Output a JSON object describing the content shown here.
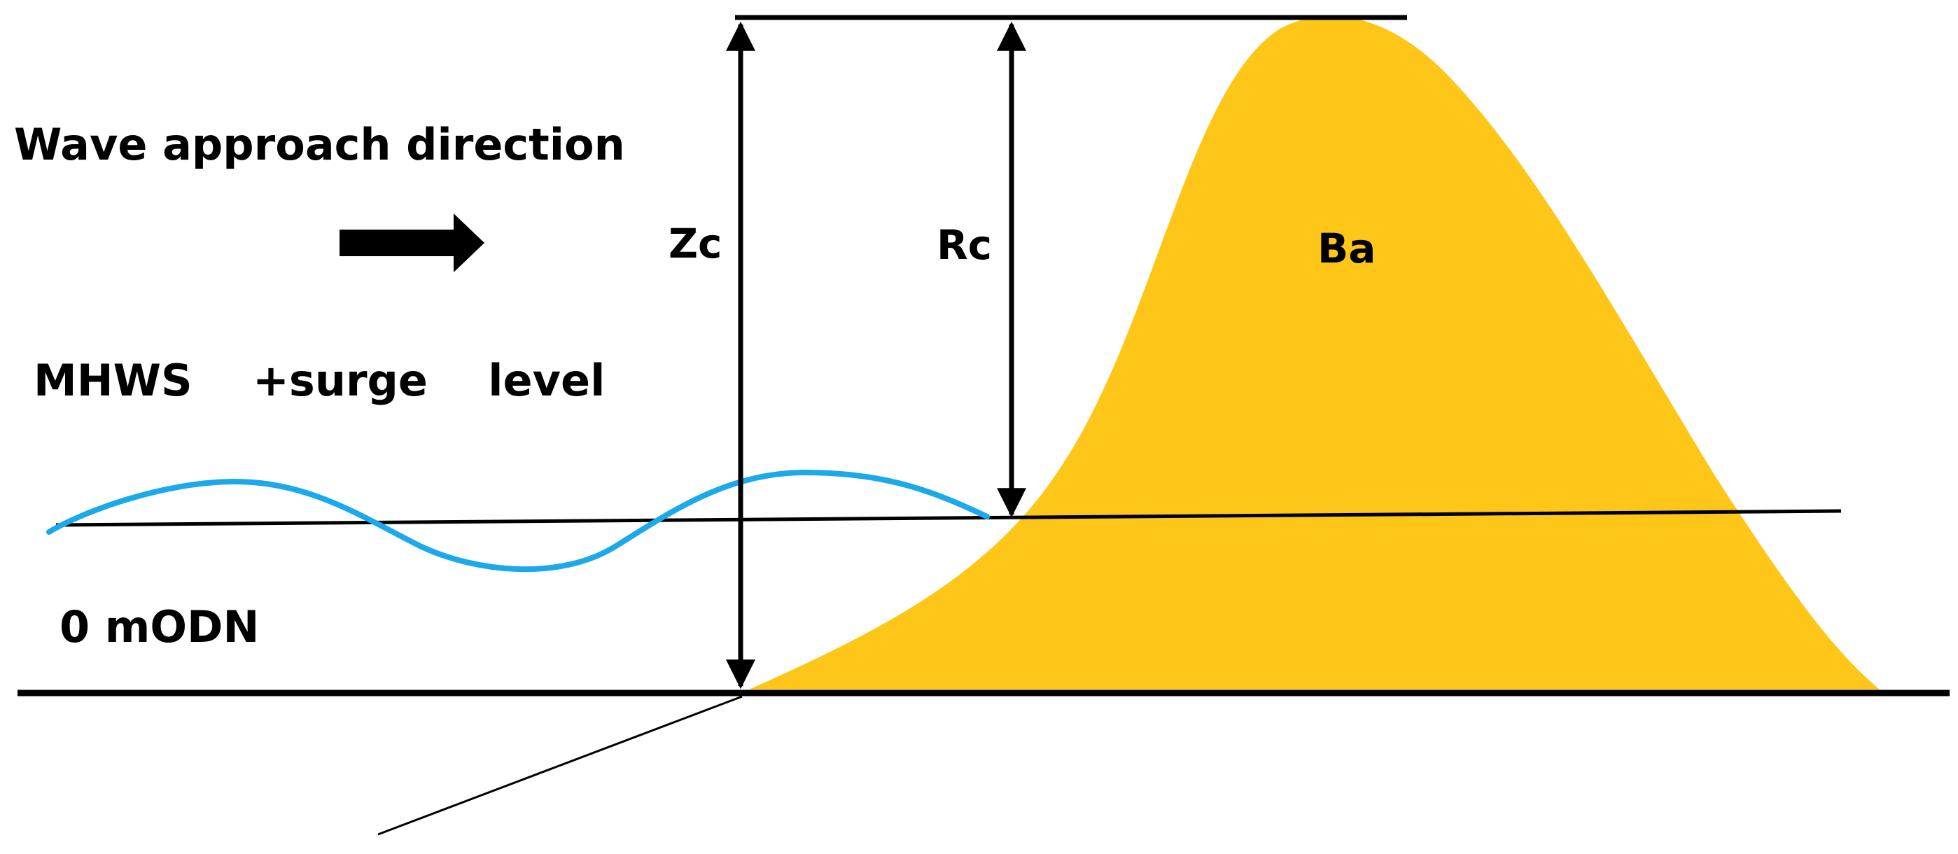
{
  "labels": {
    "wave_direction": "Wave approach direction",
    "water_level": "MHWS    +surge    level",
    "datum": "0 mODN",
    "zc": "Zc",
    "rc": "Rc",
    "ba": "Ba"
  },
  "colors": {
    "sediment_fill": "#FDC619",
    "wave_line": "#1BA9EA",
    "line": "#000000",
    "background": "#FFFFFF"
  },
  "icons": {
    "direction_arrow": "right-arrow-icon"
  }
}
